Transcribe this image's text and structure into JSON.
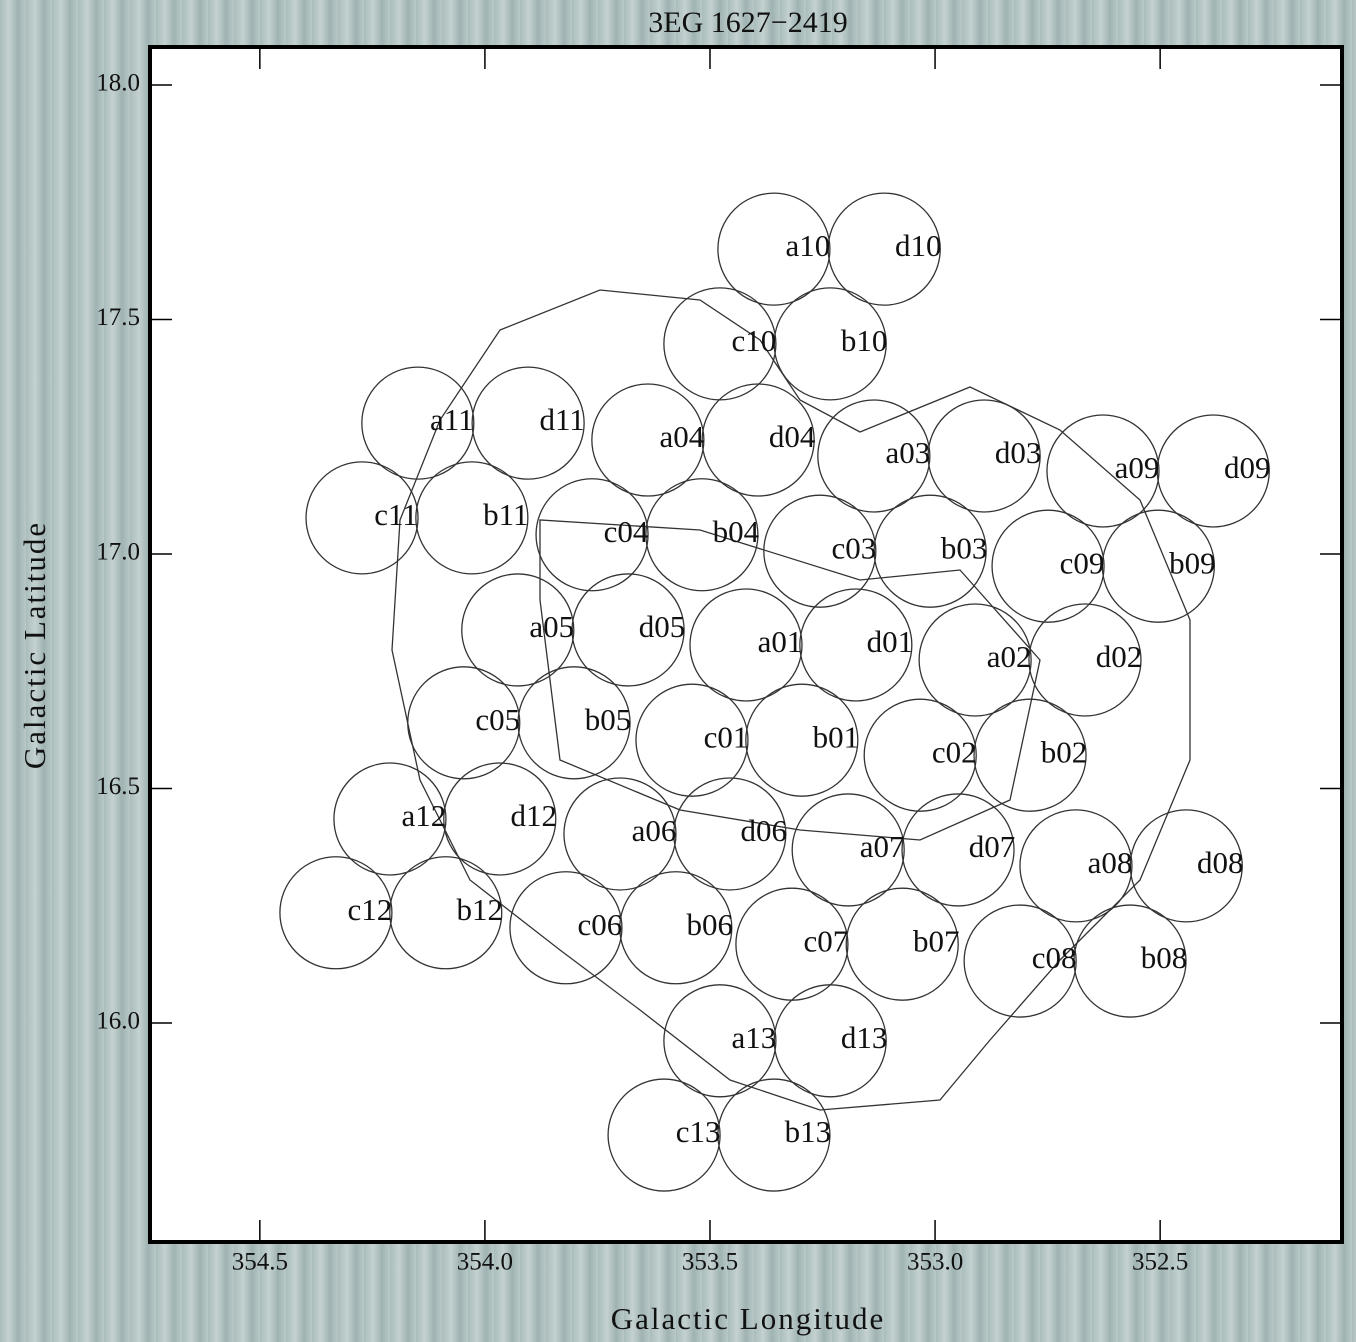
{
  "chart_data": {
    "type": "scatter",
    "title": "3EG 1627−2419",
    "x_label": "Galactic Longitude",
    "y_label": "Galactic Latitude",
    "xlim": [
      354.744,
      352.096
    ],
    "ylim": [
      15.533,
      18.081
    ],
    "xticks": [
      354.5,
      {
        "value": 354,
        "label": "354.0"
      },
      353.5,
      {
        "value": 353,
        "label": "353.0"
      },
      352.5
    ],
    "yticks": [
      {
        "value": 16,
        "label": "16.0"
      },
      16.5,
      {
        "value": 17,
        "label": "17.0"
      },
      17.5,
      {
        "value": 18,
        "label": "18.0"
      }
    ],
    "color": "#333333",
    "labels": [
      "a10",
      "d10",
      "c10",
      "b10",
      "a11",
      "d11",
      "a04",
      "d04",
      "a03",
      "d03",
      "a09",
      "d09",
      "c11",
      "b11",
      "c04",
      "b04",
      "c03",
      "b03",
      "c09",
      "b09",
      "a05",
      "d05",
      "a01",
      "d01",
      "a02",
      "d02",
      "c05",
      "b05",
      "c01",
      "b01",
      "c02",
      "b02",
      "a12",
      "d12",
      "a06",
      "d06",
      "a07",
      "d07",
      "a08",
      "d08",
      "c12",
      "b12",
      "c06",
      "b06",
      "c07",
      "b07",
      "c08",
      "b08",
      "a13",
      "d13",
      "c13",
      "b13"
    ],
    "x": [
      353.358,
      353.113,
      353.478,
      353.233,
      354.149,
      353.904,
      353.638,
      353.393,
      353.136,
      352.891,
      352.627,
      352.382,
      354.273,
      354.029,
      353.762,
      353.518,
      353.256,
      353.011,
      352.749,
      352.504,
      353.927,
      353.682,
      353.42,
      353.176,
      352.911,
      352.667,
      354.047,
      353.802,
      353.54,
      353.296,
      353.033,
      352.789,
      354.211,
      353.967,
      353.7,
      353.456,
      353.193,
      352.949,
      352.687,
      352.442,
      354.331,
      354.087,
      353.82,
      353.576,
      353.318,
      353.073,
      352.811,
      352.567,
      353.478,
      353.233,
      353.602,
      353.358
    ],
    "y": [
      17.65,
      17.65,
      17.448,
      17.448,
      17.279,
      17.279,
      17.243,
      17.243,
      17.209,
      17.209,
      17.177,
      17.177,
      17.077,
      17.077,
      17.041,
      17.041,
      17.006,
      17.006,
      16.974,
      16.974,
      16.838,
      16.838,
      16.806,
      16.806,
      16.774,
      16.774,
      16.64,
      16.64,
      16.603,
      16.603,
      16.571,
      16.571,
      16.435,
      16.435,
      16.403,
      16.403,
      16.369,
      16.369,
      16.335,
      16.335,
      16.235,
      16.235,
      16.203,
      16.203,
      16.168,
      16.168,
      16.132,
      16.132,
      15.962,
      15.962,
      15.761,
      15.761
    ]
  }
}
